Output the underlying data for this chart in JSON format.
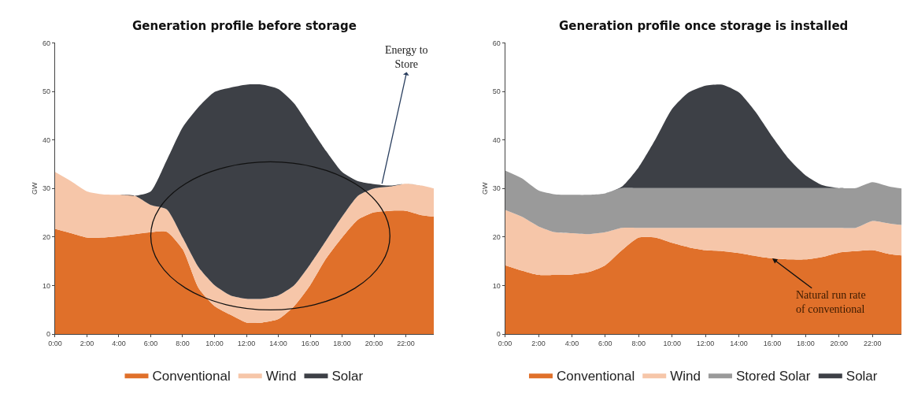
{
  "chart_data": [
    {
      "type": "area",
      "stacked": true,
      "title": "Generation profile before storage",
      "ylabel": "GW",
      "x": [
        0,
        1,
        2,
        3,
        4,
        5,
        6,
        7,
        8,
        9,
        10,
        11,
        12,
        13,
        14,
        15,
        16,
        17,
        18,
        19,
        20,
        21,
        22,
        23,
        23.75
      ],
      "series": [
        {
          "name": "Conventional",
          "color": "#e0702a",
          "values": [
            21.7,
            20.8,
            19.9,
            19.9,
            20.2,
            20.6,
            21.0,
            21.1,
            17.5,
            9.5,
            5.8,
            4.0,
            2.4,
            2.4,
            3.1,
            5.8,
            10.1,
            15.6,
            19.9,
            23.6,
            25.1,
            25.4,
            25.4,
            24.5,
            24.2
          ]
        },
        {
          "name": "Wind",
          "color": "#f6c6a9",
          "values": [
            11.7,
            10.7,
            9.5,
            8.9,
            8.5,
            7.9,
            5.6,
            4.6,
            2.4,
            4.3,
            4.3,
            4.0,
            4.9,
            4.9,
            4.9,
            4.3,
            4.3,
            3.7,
            4.3,
            4.9,
            4.9,
            5.0,
            5.6,
            6.1,
            5.8
          ]
        },
        {
          "name": "Solar",
          "color": "#3d4046",
          "values": [
            0,
            0,
            0,
            0,
            0,
            0,
            2.8,
            10.1,
            22.7,
            33.0,
            39.8,
            42.8,
            44.1,
            44.1,
            42.5,
            37.4,
            28.2,
            18.4,
            9.2,
            3.0,
            0.9,
            0.2,
            0,
            0,
            0
          ]
        }
      ],
      "xlim": [
        0,
        23.75
      ],
      "xticks": [
        {
          "value": 0,
          "label": "0:00"
        },
        {
          "value": 2,
          "label": "2:00"
        },
        {
          "value": 4,
          "label": "4:00"
        },
        {
          "value": 6,
          "label": "6:00"
        },
        {
          "value": 8,
          "label": "8:00"
        },
        {
          "value": 10,
          "label": "10:00"
        },
        {
          "value": 12,
          "label": "12:00"
        },
        {
          "value": 14,
          "label": "14:00"
        },
        {
          "value": 16,
          "label": "16:00"
        },
        {
          "value": 18,
          "label": "18:00"
        },
        {
          "value": 20,
          "label": "20:00"
        },
        {
          "value": 22,
          "label": "22:00"
        }
      ],
      "ylim": [
        0,
        60
      ],
      "yticks": [
        0,
        10,
        20,
        30,
        40,
        50,
        60
      ],
      "legend": "bottom",
      "annotations": [
        {
          "text": "Energy to\nStore",
          "x": 20.5,
          "y": 31
        }
      ]
    },
    {
      "type": "area",
      "stacked": true,
      "title": "Generation profile once storage is installed",
      "ylabel": "GW",
      "x": [
        0,
        1,
        2,
        3,
        4,
        5,
        6,
        7,
        8,
        9,
        10,
        11,
        12,
        13,
        14,
        15,
        16,
        17,
        18,
        19,
        20,
        21,
        22,
        23,
        23.75
      ],
      "series": [
        {
          "name": "Conventional",
          "color": "#e0702a",
          "values": [
            14.2,
            13.1,
            12.2,
            12.2,
            12.3,
            12.8,
            14.2,
            17.3,
            19.9,
            19.9,
            18.8,
            17.9,
            17.3,
            17.1,
            16.7,
            16.1,
            15.6,
            15.4,
            15.4,
            15.9,
            16.8,
            17.1,
            17.3,
            16.5,
            16.2
          ]
        },
        {
          "name": "Wind",
          "color": "#f6c6a9",
          "values": [
            11.4,
            11.1,
            10.0,
            8.8,
            8.5,
            7.8,
            6.8,
            4.6,
            2.0,
            2.0,
            3.1,
            4.0,
            4.6,
            4.8,
            5.2,
            5.8,
            6.3,
            6.5,
            6.5,
            6.0,
            5.1,
            4.8,
            6.0,
            6.3,
            6.3
          ]
        },
        {
          "name": "Stored Solar",
          "color": "#9a9a9a",
          "values": [
            8.1,
            7.9,
            7.4,
            7.8,
            7.9,
            8.1,
            8.0,
            8.2,
            8.2,
            8.2,
            8.2,
            8.2,
            8.2,
            8.2,
            8.2,
            8.2,
            8.2,
            8.2,
            8.2,
            8.2,
            8.2,
            8.2,
            8.0,
            7.6,
            7.5
          ]
        },
        {
          "name": "Solar",
          "color": "#3d4046",
          "values": [
            0,
            0,
            0,
            0,
            0,
            0,
            0,
            0.3,
            4.3,
            10.0,
            16.3,
            19.7,
            21.1,
            21.3,
            19.7,
            15.7,
            10.6,
            6.0,
            2.6,
            0.6,
            0,
            0,
            0,
            0,
            0
          ]
        }
      ],
      "xlim": [
        0,
        23.75
      ],
      "xticks": [
        {
          "value": 0,
          "label": "0:00"
        },
        {
          "value": 2,
          "label": "2:00"
        },
        {
          "value": 4,
          "label": "4:00"
        },
        {
          "value": 6,
          "label": "6:00"
        },
        {
          "value": 8,
          "label": "8:00"
        },
        {
          "value": 10,
          "label": "10:00"
        },
        {
          "value": 12,
          "label": "12:00"
        },
        {
          "value": 14,
          "label": "14:00"
        },
        {
          "value": 16,
          "label": "16:00"
        },
        {
          "value": 18,
          "label": "18:00"
        },
        {
          "value": 20,
          "label": "20:00"
        },
        {
          "value": 22,
          "label": "22:00"
        }
      ],
      "ylim": [
        0,
        60
      ],
      "yticks": [
        0,
        10,
        20,
        30,
        40,
        50,
        60
      ],
      "legend": "bottom",
      "annotations": [
        {
          "text": "Natural run rate\nof conventional",
          "x": 16,
          "y": 15.6
        }
      ]
    }
  ]
}
